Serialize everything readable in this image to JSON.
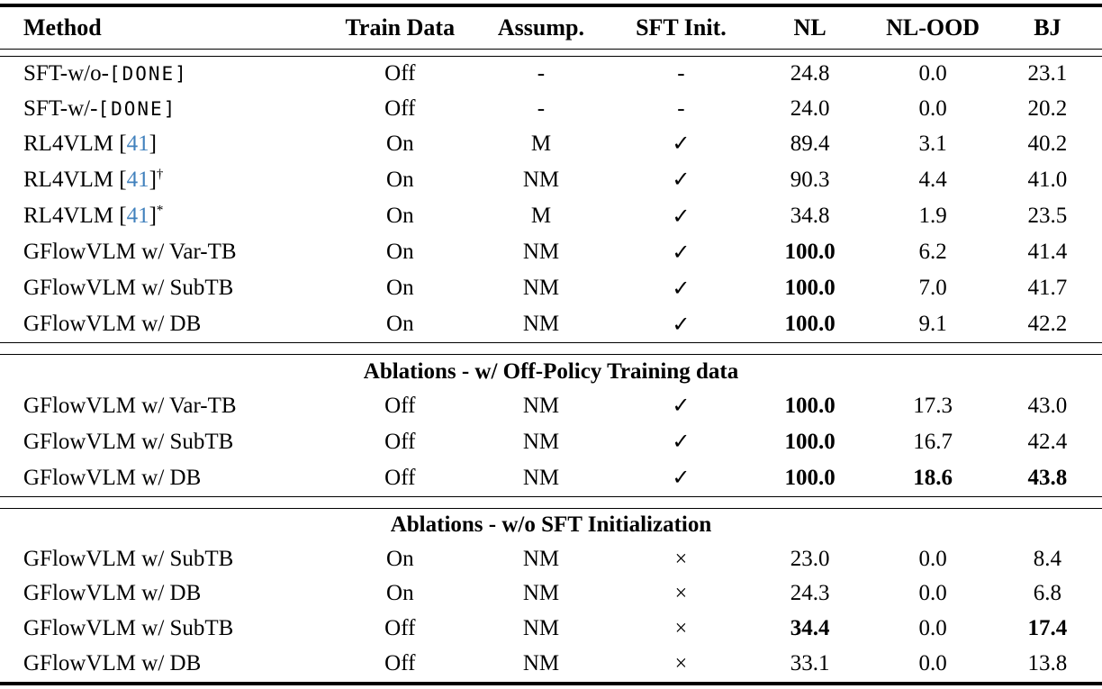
{
  "accent_colors": {
    "citation_blue": "#4181bd",
    "text": "#000000",
    "background": "#ffffff"
  },
  "table": {
    "header": [
      "Method",
      "Train Data",
      "Assump.",
      "SFT Init.",
      "NL",
      "NL-OOD",
      "BJ"
    ],
    "header_keys": [
      "method",
      "train-data",
      "assump",
      "sft-init",
      "nl",
      "nl-ood",
      "bj"
    ],
    "marks": {
      "check": "✓",
      "cross": "×",
      "none": "-"
    },
    "sections": [
      {
        "title": null,
        "rows": [
          {
            "method": [
              {
                "t": "SFT-w/o-",
                "s": "plain"
              },
              {
                "t": "[DONE]",
                "s": "mono",
                "name": "done-token"
              }
            ],
            "cells": [
              {
                "t": "Off"
              },
              {
                "t": "-"
              },
              {
                "t": "-"
              },
              {
                "t": "24.8"
              },
              {
                "t": "0.0"
              },
              {
                "t": "23.1"
              }
            ]
          },
          {
            "method": [
              {
                "t": "SFT-w/-",
                "s": "plain"
              },
              {
                "t": "[DONE]",
                "s": "mono",
                "name": "done-token"
              }
            ],
            "cells": [
              {
                "t": "Off"
              },
              {
                "t": "-"
              },
              {
                "t": "-"
              },
              {
                "t": "24.0"
              },
              {
                "t": "0.0"
              },
              {
                "t": "20.2"
              }
            ]
          },
          {
            "method": [
              {
                "t": "RL4VLM [",
                "s": "plain"
              },
              {
                "t": "41",
                "s": "cite",
                "name": "citation-41"
              },
              {
                "t": "]",
                "s": "plain"
              }
            ],
            "cells": [
              {
                "t": "On"
              },
              {
                "t": "M"
              },
              {
                "t": "✓",
                "icon": "checkmark-icon"
              },
              {
                "t": "89.4"
              },
              {
                "t": "3.1"
              },
              {
                "t": "40.2"
              }
            ]
          },
          {
            "method": [
              {
                "t": "RL4VLM [",
                "s": "plain"
              },
              {
                "t": "41",
                "s": "cite",
                "name": "citation-41"
              },
              {
                "t": "]",
                "s": "plain"
              },
              {
                "t": "†",
                "s": "sup",
                "name": "dagger-mark"
              }
            ],
            "cells": [
              {
                "t": "On"
              },
              {
                "t": "NM"
              },
              {
                "t": "✓",
                "icon": "checkmark-icon"
              },
              {
                "t": "90.3"
              },
              {
                "t": "4.4"
              },
              {
                "t": "41.0"
              }
            ]
          },
          {
            "method": [
              {
                "t": "RL4VLM [",
                "s": "plain"
              },
              {
                "t": "41",
                "s": "cite",
                "name": "citation-41"
              },
              {
                "t": "]",
                "s": "plain"
              },
              {
                "t": "*",
                "s": "sup",
                "name": "asterisk-mark"
              }
            ],
            "cells": [
              {
                "t": "On"
              },
              {
                "t": "M"
              },
              {
                "t": "✓",
                "icon": "checkmark-icon"
              },
              {
                "t": "34.8"
              },
              {
                "t": "1.9"
              },
              {
                "t": "23.5"
              }
            ]
          },
          {
            "method": [
              {
                "t": "GFlowVLM w/ Var-TB",
                "s": "plain"
              }
            ],
            "cells": [
              {
                "t": "On"
              },
              {
                "t": "NM"
              },
              {
                "t": "✓",
                "icon": "checkmark-icon"
              },
              {
                "t": "100.0",
                "b": true
              },
              {
                "t": "6.2"
              },
              {
                "t": "41.4"
              }
            ]
          },
          {
            "method": [
              {
                "t": "GFlowVLM w/ SubTB",
                "s": "plain"
              }
            ],
            "cells": [
              {
                "t": "On"
              },
              {
                "t": "NM"
              },
              {
                "t": "✓",
                "icon": "checkmark-icon"
              },
              {
                "t": "100.0",
                "b": true
              },
              {
                "t": "7.0"
              },
              {
                "t": "41.7"
              }
            ]
          },
          {
            "method": [
              {
                "t": "GFlowVLM w/ DB",
                "s": "plain"
              }
            ],
            "cells": [
              {
                "t": "On"
              },
              {
                "t": "NM"
              },
              {
                "t": "✓",
                "icon": "checkmark-icon"
              },
              {
                "t": "100.0",
                "b": true
              },
              {
                "t": "9.1"
              },
              {
                "t": "42.2"
              }
            ]
          }
        ]
      },
      {
        "title": "Ablations - w/ Off-Policy Training data",
        "rows": [
          {
            "method": [
              {
                "t": "GFlowVLM w/ Var-TB",
                "s": "plain"
              }
            ],
            "cells": [
              {
                "t": "Off"
              },
              {
                "t": "NM"
              },
              {
                "t": "✓",
                "icon": "checkmark-icon"
              },
              {
                "t": "100.0",
                "b": true
              },
              {
                "t": "17.3"
              },
              {
                "t": "43.0"
              }
            ]
          },
          {
            "method": [
              {
                "t": "GFlowVLM w/ SubTB",
                "s": "plain"
              }
            ],
            "cells": [
              {
                "t": "Off"
              },
              {
                "t": "NM"
              },
              {
                "t": "✓",
                "icon": "checkmark-icon"
              },
              {
                "t": "100.0",
                "b": true
              },
              {
                "t": "16.7"
              },
              {
                "t": "42.4"
              }
            ]
          },
          {
            "method": [
              {
                "t": "GFlowVLM w/ DB",
                "s": "plain"
              }
            ],
            "cells": [
              {
                "t": "Off"
              },
              {
                "t": "NM"
              },
              {
                "t": "✓",
                "icon": "checkmark-icon"
              },
              {
                "t": "100.0",
                "b": true
              },
              {
                "t": "18.6",
                "b": true
              },
              {
                "t": "43.8",
                "b": true
              }
            ]
          }
        ]
      },
      {
        "title": "Ablations - w/o SFT Initialization",
        "rows": [
          {
            "method": [
              {
                "t": "GFlowVLM w/ SubTB",
                "s": "plain"
              }
            ],
            "cells": [
              {
                "t": "On"
              },
              {
                "t": "NM"
              },
              {
                "t": "×",
                "icon": "cross-icon"
              },
              {
                "t": "23.0"
              },
              {
                "t": "0.0"
              },
              {
                "t": "8.4"
              }
            ]
          },
          {
            "method": [
              {
                "t": "GFlowVLM w/ DB",
                "s": "plain"
              }
            ],
            "cells": [
              {
                "t": "On"
              },
              {
                "t": "NM"
              },
              {
                "t": "×",
                "icon": "cross-icon"
              },
              {
                "t": "24.3"
              },
              {
                "t": "0.0"
              },
              {
                "t": "6.8"
              }
            ]
          },
          {
            "method": [
              {
                "t": "GFlowVLM w/ SubTB",
                "s": "plain"
              }
            ],
            "cells": [
              {
                "t": "Off"
              },
              {
                "t": "NM"
              },
              {
                "t": "×",
                "icon": "cross-icon"
              },
              {
                "t": "34.4",
                "b": true
              },
              {
                "t": "0.0"
              },
              {
                "t": "17.4",
                "b": true
              }
            ]
          },
          {
            "method": [
              {
                "t": "GFlowVLM w/ DB",
                "s": "plain"
              }
            ],
            "cells": [
              {
                "t": "Off"
              },
              {
                "t": "NM"
              },
              {
                "t": "×",
                "icon": "cross-icon"
              },
              {
                "t": "33.1"
              },
              {
                "t": "0.0"
              },
              {
                "t": "13.8"
              }
            ]
          }
        ]
      }
    ]
  }
}
